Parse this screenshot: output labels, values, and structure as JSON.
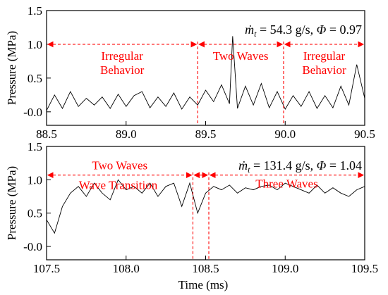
{
  "chart_data": [
    {
      "type": "line",
      "xlim": [
        88.5,
        90.5
      ],
      "ylim": [
        -0.2,
        1.5
      ],
      "x_ticks": [
        "88.5",
        "89.0",
        "89.5",
        "90.0",
        "90.5"
      ],
      "y_ticks": [
        "-0.0",
        "0.5",
        "1.0",
        "1.5"
      ],
      "ylabel": "Pressure (MPa)",
      "xlabel": "",
      "annotation": {
        "mdot": "ṁ",
        "mdot_sub": "t",
        "mdot_value": " = 54.3 g/s,  ",
        "phi": "Φ",
        "phi_value": " = 0.97"
      },
      "boundaries": [
        89.45,
        89.99
      ],
      "arrow_y": 1.0,
      "regions": [
        {
          "lines": [
            "Irregular",
            "Behavior"
          ],
          "from": 88.5,
          "to": 89.45
        },
        {
          "lines": [
            "Two Waves"
          ],
          "from": 89.45,
          "to": 89.99
        },
        {
          "lines": [
            "Irregular",
            "Behavior"
          ],
          "from": 89.99,
          "to": 90.5
        }
      ],
      "series": [
        {
          "x": [
            88.5,
            88.55,
            88.6,
            88.65,
            88.7,
            88.75,
            88.8,
            88.85,
            88.9,
            88.95,
            89.0,
            89.05,
            89.1,
            89.15,
            89.2,
            89.25,
            89.3,
            89.35,
            89.4,
            89.45,
            89.5,
            89.55,
            89.6,
            89.65,
            89.67,
            89.7,
            89.75,
            89.8,
            89.85,
            89.9,
            89.95,
            90.0,
            90.05,
            90.1,
            90.15,
            90.2,
            90.25,
            90.3,
            90.35,
            90.4,
            90.45,
            90.5
          ],
          "y": [
            0.02,
            0.25,
            0.05,
            0.3,
            0.08,
            0.2,
            0.1,
            0.22,
            0.05,
            0.26,
            0.08,
            0.24,
            0.3,
            0.06,
            0.22,
            0.08,
            0.28,
            0.04,
            0.22,
            0.1,
            0.32,
            0.15,
            0.4,
            0.12,
            1.12,
            0.05,
            0.38,
            0.1,
            0.42,
            0.06,
            0.3,
            0.04,
            0.24,
            0.08,
            0.3,
            0.05,
            0.24,
            0.06,
            0.38,
            0.1,
            0.7,
            0.2
          ]
        }
      ]
    },
    {
      "type": "line",
      "xlim": [
        107.5,
        109.5
      ],
      "ylim": [
        -0.2,
        1.5
      ],
      "x_ticks": [
        "107.5",
        "108.0",
        "108.5",
        "109.0",
        "109.5"
      ],
      "y_ticks": [
        "-0.0",
        "0.5",
        "1.0",
        "1.5"
      ],
      "ylabel": "Pressure (MPa)",
      "xlabel": "Time (ms)",
      "annotation": {
        "mdot": "ṁ",
        "mdot_sub": "t",
        "mdot_value": " = 131.4 g/s,  ",
        "phi": "Φ",
        "phi_value": " = 1.04"
      },
      "boundaries": [
        108.42,
        108.52
      ],
      "arrow_y": 1.07,
      "regions": [
        {
          "lines": [
            "Two Waves"
          ],
          "from": 107.5,
          "to": 108.42
        },
        {
          "lines": [
            "Wave Transition"
          ],
          "from": 108.42,
          "to": 108.52
        },
        {
          "lines": [
            "Three Waves"
          ],
          "from": 108.52,
          "to": 109.5
        }
      ],
      "series": [
        {
          "x": [
            107.5,
            107.55,
            107.6,
            107.65,
            107.7,
            107.75,
            107.8,
            107.85,
            107.9,
            107.95,
            108.0,
            108.05,
            108.1,
            108.15,
            108.2,
            108.25,
            108.3,
            108.35,
            108.4,
            108.45,
            108.5,
            108.55,
            108.6,
            108.65,
            108.7,
            108.75,
            108.8,
            108.85,
            108.9,
            108.95,
            109.0,
            109.05,
            109.1,
            109.15,
            109.2,
            109.25,
            109.3,
            109.35,
            109.4,
            109.45,
            109.5
          ],
          "y": [
            0.4,
            0.2,
            0.6,
            0.8,
            0.9,
            0.75,
            0.95,
            0.8,
            0.7,
            1.0,
            0.85,
            0.9,
            0.8,
            0.95,
            0.75,
            0.9,
            0.95,
            0.6,
            0.95,
            0.5,
            0.8,
            0.9,
            0.85,
            0.92,
            0.8,
            0.88,
            0.85,
            0.9,
            0.92,
            0.85,
            0.95,
            0.9,
            0.85,
            0.8,
            0.92,
            0.8,
            0.88,
            0.8,
            0.75,
            0.85,
            0.9
          ]
        }
      ]
    }
  ]
}
